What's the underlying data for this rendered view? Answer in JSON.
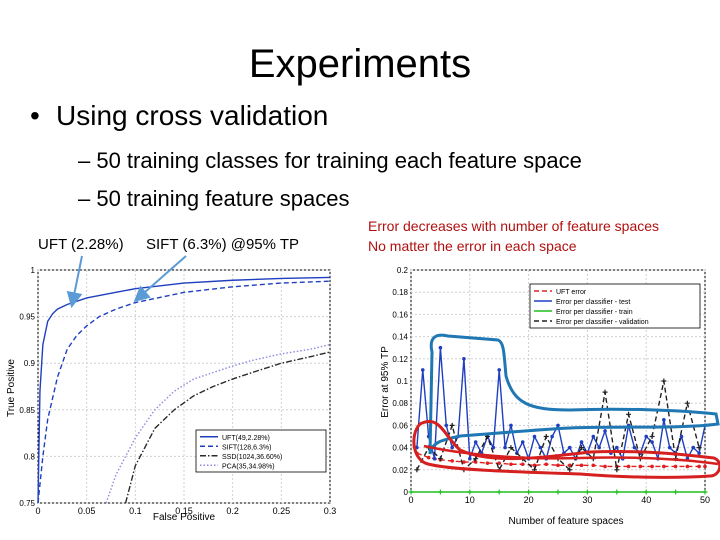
{
  "slide": {
    "title": "Experiments",
    "bullet": "Using cross validation",
    "sub_bullets": [
      "– 50 training classes for training each feature space",
      "– 50 training feature spaces"
    ],
    "label_uft": "UFT (2.28%)",
    "label_sift": "SIFT (6.3%) @95% TP",
    "note_line1": "Error decreases with number of feature spaces",
    "note_line2": "No matter the error in each space"
  },
  "colors": {
    "note": "#b01010",
    "highlight_blue": "#1f77b4",
    "highlight_red": "#d62020",
    "arrow": "#5b9bd5"
  },
  "chart_data": [
    {
      "type": "line",
      "xlabel": "False Positive",
      "ylabel": "True Positive",
      "xlim": [
        0,
        0.3
      ],
      "ylim": [
        0.75,
        1
      ],
      "xticks": [
        "0",
        "0.05",
        "0.1",
        "0.15",
        "0.2",
        "0.25",
        "0.3"
      ],
      "yticks": [
        "0.75",
        "0.8",
        "0.85",
        "0.9",
        "0.95",
        "1"
      ],
      "legend_position": "bottom-right",
      "series": [
        {
          "name": "UFT(49,2.28%)",
          "color": "#1f3fbf",
          "dash": "solid",
          "x": [
            0,
            0.002,
            0.005,
            0.01,
            0.015,
            0.02,
            0.03,
            0.05,
            0.08,
            0.1,
            0.15,
            0.2,
            0.25,
            0.3
          ],
          "y": [
            0.75,
            0.87,
            0.92,
            0.945,
            0.953,
            0.958,
            0.963,
            0.97,
            0.976,
            0.98,
            0.986,
            0.989,
            0.991,
            0.992
          ]
        },
        {
          "name": "SIFT(128,6.3%)",
          "color": "#1f3fbf",
          "dash": "dashed",
          "x": [
            0,
            0.005,
            0.01,
            0.02,
            0.03,
            0.04,
            0.05,
            0.063,
            0.08,
            0.1,
            0.15,
            0.2,
            0.25,
            0.3
          ],
          "y": [
            0.75,
            0.8,
            0.84,
            0.885,
            0.915,
            0.93,
            0.94,
            0.95,
            0.958,
            0.965,
            0.976,
            0.982,
            0.986,
            0.988
          ]
        },
        {
          "name": "SSD(1024,36.60%)",
          "color": "#2a2a2a",
          "dash": "dashdot",
          "x": [
            0.09,
            0.1,
            0.12,
            0.14,
            0.16,
            0.18,
            0.2,
            0.22,
            0.25,
            0.28,
            0.3
          ],
          "y": [
            0.75,
            0.79,
            0.83,
            0.85,
            0.865,
            0.875,
            0.883,
            0.89,
            0.9,
            0.907,
            0.912
          ]
        },
        {
          "name": "PCA(35,34.98%)",
          "color": "#8a8ae0",
          "dash": "dotted",
          "x": [
            0.07,
            0.08,
            0.1,
            0.12,
            0.14,
            0.16,
            0.18,
            0.2,
            0.22,
            0.25,
            0.28,
            0.3
          ],
          "y": [
            0.75,
            0.78,
            0.82,
            0.85,
            0.87,
            0.883,
            0.89,
            0.897,
            0.903,
            0.91,
            0.915,
            0.92
          ]
        }
      ]
    },
    {
      "type": "line",
      "xlabel": "Number of feature spaces",
      "ylabel": "Error at 95% TP",
      "xlim": [
        0,
        50
      ],
      "ylim": [
        0,
        0.2
      ],
      "xticks": [
        "0",
        "10",
        "20",
        "30",
        "40",
        "50"
      ],
      "yticks": [
        "0",
        "0.02",
        "0.04",
        "0.06",
        "0.08",
        "0.1",
        "0.12",
        "0.14",
        "0.16",
        "0.18",
        "0.2"
      ],
      "legend_position": "top-right",
      "series": [
        {
          "name": "UFT error",
          "color": "#e02020",
          "dash": "dashed",
          "marker": "dot",
          "x": [
            1,
            3,
            5,
            7,
            9,
            11,
            13,
            15,
            17,
            19,
            21,
            23,
            25,
            27,
            29,
            31,
            33,
            35,
            37,
            39,
            41,
            43,
            45,
            47,
            49,
            50
          ],
          "y": [
            0.035,
            0.031,
            0.029,
            0.028,
            0.027,
            0.027,
            0.026,
            0.026,
            0.025,
            0.025,
            0.024,
            0.025,
            0.024,
            0.024,
            0.024,
            0.024,
            0.023,
            0.023,
            0.023,
            0.023,
            0.023,
            0.023,
            0.023,
            0.023,
            0.023,
            0.023
          ]
        },
        {
          "name": "Error per classifier - test",
          "color": "#1f3fbf",
          "dash": "solid",
          "marker": "dot",
          "x": [
            1,
            2,
            3,
            4,
            5,
            6,
            7,
            8,
            9,
            10,
            11,
            12,
            13,
            14,
            15,
            16,
            17,
            18,
            19,
            20,
            21,
            22,
            23,
            24,
            25,
            26,
            27,
            28,
            29,
            30,
            31,
            32,
            33,
            34,
            35,
            36,
            37,
            38,
            39,
            40,
            41,
            42,
            43,
            44,
            45,
            46,
            47,
            48,
            49,
            50
          ],
          "y": [
            0.04,
            0.11,
            0.05,
            0.03,
            0.13,
            0.06,
            0.04,
            0.05,
            0.12,
            0.03,
            0.045,
            0.035,
            0.05,
            0.04,
            0.11,
            0.04,
            0.06,
            0.035,
            0.045,
            0.03,
            0.05,
            0.04,
            0.03,
            0.05,
            0.06,
            0.035,
            0.04,
            0.03,
            0.045,
            0.035,
            0.05,
            0.04,
            0.055,
            0.035,
            0.04,
            0.03,
            0.06,
            0.04,
            0.035,
            0.05,
            0.045,
            0.03,
            0.065,
            0.04,
            0.035,
            0.05,
            0.03,
            0.04,
            0.035,
            0.06
          ]
        },
        {
          "name": "Error per classifier - train",
          "color": "#20c020",
          "dash": "solid",
          "marker": "plus",
          "x": [
            0,
            5,
            10,
            15,
            20,
            25,
            30,
            35,
            40,
            45,
            50
          ],
          "y": [
            0,
            0,
            0,
            0,
            0,
            0,
            0,
            0,
            0,
            0,
            0
          ]
        },
        {
          "name": "Error per classifier - validation",
          "color": "#202020",
          "dash": "dashed",
          "marker": "plus",
          "x": [
            1,
            3,
            5,
            7,
            9,
            11,
            13,
            15,
            17,
            19,
            21,
            23,
            25,
            27,
            29,
            31,
            33,
            35,
            37,
            39,
            41,
            43,
            45,
            47,
            49
          ],
          "y": [
            0.02,
            0.04,
            0.03,
            0.06,
            0.02,
            0.03,
            0.05,
            0.02,
            0.04,
            0.03,
            0.02,
            0.05,
            0.03,
            0.02,
            0.04,
            0.03,
            0.09,
            0.02,
            0.07,
            0.03,
            0.05,
            0.1,
            0.03,
            0.08,
            0.04
          ]
        }
      ]
    }
  ]
}
